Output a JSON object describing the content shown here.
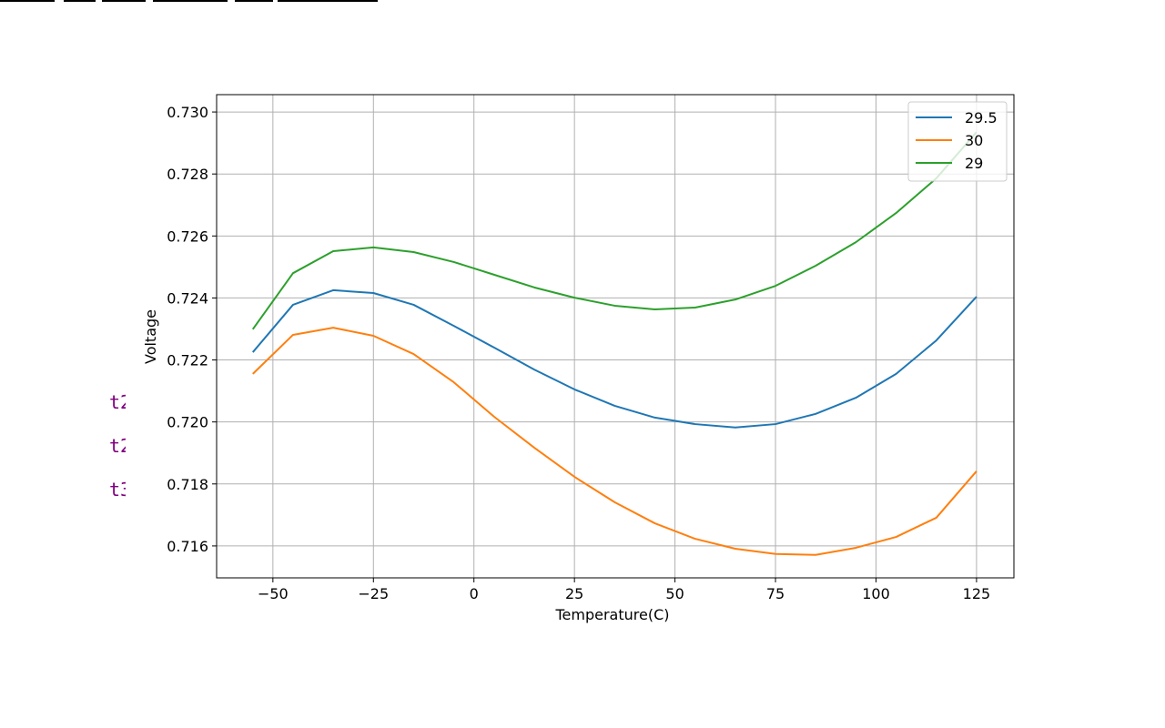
{
  "chart_data": {
    "type": "line",
    "xlabel": "Temperature(C)",
    "ylabel": "Voltage",
    "x": [
      -55,
      -45,
      -35,
      -25,
      -15,
      -5,
      5,
      15,
      25,
      35,
      45,
      55,
      65,
      75,
      85,
      95,
      105,
      115,
      125
    ],
    "series": [
      {
        "name": "29.5",
        "color": "#1f77b4",
        "values": [
          0.72225,
          0.72378,
          0.72425,
          0.72416,
          0.72378,
          0.7231,
          0.7224,
          0.72169,
          0.72105,
          0.72052,
          0.72014,
          0.71993,
          0.71982,
          0.71993,
          0.72026,
          0.72078,
          0.72155,
          0.72263,
          0.72404
        ]
      },
      {
        "name": "30",
        "color": "#ff7f0e",
        "values": [
          0.72155,
          0.72281,
          0.72304,
          0.72278,
          0.72219,
          0.72128,
          0.72017,
          0.71917,
          0.71823,
          0.71741,
          0.71673,
          0.71623,
          0.71591,
          0.71574,
          0.71571,
          0.71594,
          0.71629,
          0.71691,
          0.71841
        ]
      },
      {
        "name": "29",
        "color": "#2ca02c",
        "values": [
          0.72299,
          0.7248,
          0.72551,
          0.72563,
          0.72548,
          0.72516,
          0.72475,
          0.72434,
          0.72401,
          0.72375,
          0.72363,
          0.72369,
          0.72395,
          0.72439,
          0.72504,
          0.7258,
          0.72674,
          0.72786,
          0.72935
        ]
      }
    ],
    "xlim": [
      -64,
      134.3
    ],
    "ylim": [
      0.71497,
      0.73056
    ],
    "xticks": [
      {
        "value": -50,
        "label": "−50"
      },
      {
        "value": -25,
        "label": "−25"
      },
      0,
      25,
      50,
      75,
      100,
      125
    ],
    "yticks": [
      {
        "value": 0.716,
        "label": "0.716"
      },
      {
        "value": 0.718,
        "label": "0.718"
      },
      {
        "value": 0.72,
        "label": "0.720"
      },
      {
        "value": 0.722,
        "label": "0.722"
      },
      {
        "value": 0.724,
        "label": "0.724"
      },
      {
        "value": 0.726,
        "label": "0.726"
      },
      {
        "value": 0.728,
        "label": "0.728"
      },
      {
        "value": 0.73,
        "label": "0.730"
      }
    ],
    "grid": true,
    "legend": "upper right",
    "side_labels": [
      "t2",
      "t2",
      "t3"
    ]
  }
}
